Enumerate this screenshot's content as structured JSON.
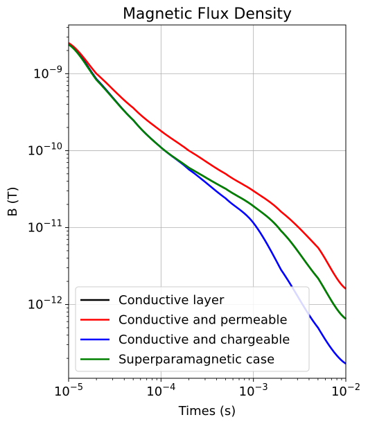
{
  "chart_data": {
    "type": "line",
    "title": "Magnetic Flux Density",
    "xlabel": "Times (s)",
    "ylabel": "B (T)",
    "xscale": "log",
    "yscale": "log",
    "xlim": [
      1e-05,
      0.01
    ],
    "ylim": [
      1.1e-13,
      4.3e-09
    ],
    "grid": true,
    "legend_position": "lower-left",
    "x_ticks": [
      {
        "value": 1e-05,
        "base": "10",
        "exp": "−5"
      },
      {
        "value": 0.0001,
        "base": "10",
        "exp": "−4"
      },
      {
        "value": 0.001,
        "base": "10",
        "exp": "−3"
      },
      {
        "value": 0.01,
        "base": "10",
        "exp": "−2"
      }
    ],
    "y_ticks": [
      {
        "value": 1e-12,
        "base": "10",
        "exp": "−12"
      },
      {
        "value": 1e-11,
        "base": "10",
        "exp": "−11"
      },
      {
        "value": 1e-10,
        "base": "10",
        "exp": "−10"
      },
      {
        "value": 1e-09,
        "base": "10",
        "exp": "−9"
      }
    ],
    "x": [
      1e-05,
      2e-05,
      5e-05,
      0.0001,
      0.0002,
      0.0005,
      0.001,
      0.002,
      0.005,
      0.01
    ],
    "series": [
      {
        "name": "Conductive layer",
        "color": "#000000",
        "values": [
          2.5e-09,
          8.5e-10,
          2.5e-10,
          1.1e-10,
          6e-11,
          3.2e-11,
          1.9e-11,
          9e-12,
          2.2e-12,
          6.5e-13
        ]
      },
      {
        "name": "Conductive and permeable",
        "color": "#ff0000",
        "values": [
          2.5e-09,
          1e-09,
          3.6e-10,
          1.8e-10,
          1e-10,
          5e-11,
          3e-11,
          1.6e-11,
          5.5e-12,
          1.6e-12
        ]
      },
      {
        "name": "Conductive and chargeable",
        "color": "#0000ff",
        "values": [
          2.4e-09,
          8.5e-10,
          2.5e-10,
          1.1e-10,
          5.7e-11,
          2.4e-11,
          1.15e-11,
          2.8e-12,
          5e-13,
          1.7e-13
        ]
      },
      {
        "name": "Superparamagnetic case",
        "color": "#008000",
        "values": [
          2.4e-09,
          8.3e-10,
          2.5e-10,
          1.1e-10,
          6e-11,
          3.2e-11,
          1.9e-11,
          9e-12,
          2.2e-12,
          6.5e-13
        ]
      }
    ]
  }
}
